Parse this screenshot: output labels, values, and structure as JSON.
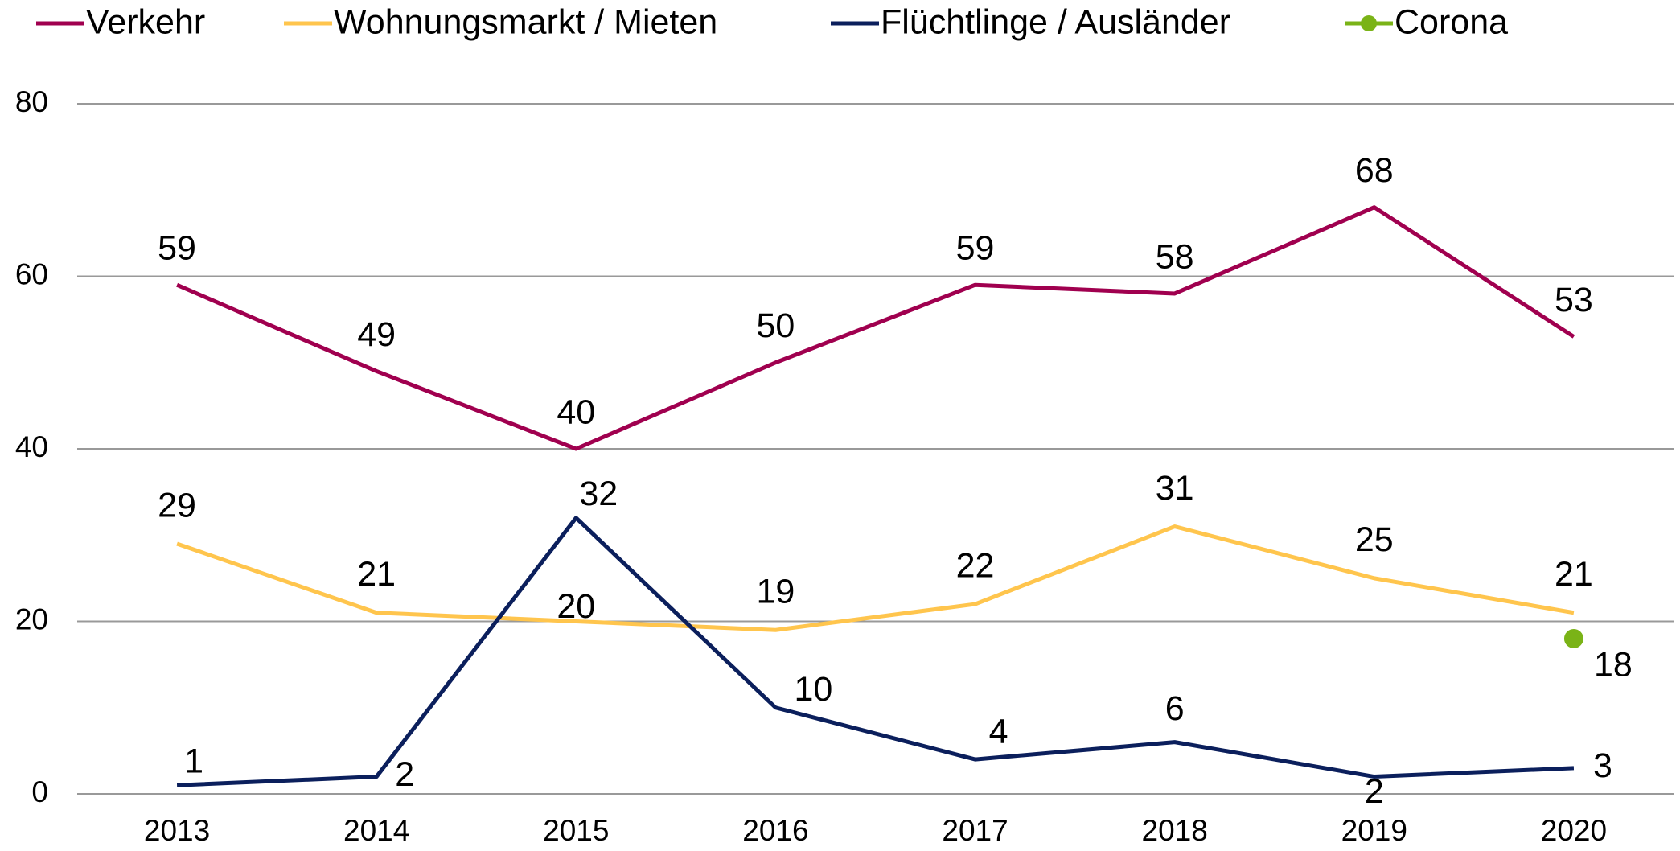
{
  "chart_data": {
    "type": "line",
    "categories": [
      "2013",
      "2014",
      "2015",
      "2016",
      "2017",
      "2018",
      "2019",
      "2020"
    ],
    "series": [
      {
        "name": "Verkehr",
        "color": "#a0004f",
        "values": [
          59,
          49,
          40,
          50,
          59,
          58,
          68,
          53
        ]
      },
      {
        "name": "Wohnungsmarkt / Mieten",
        "color": "#ffc54d",
        "values": [
          29,
          21,
          20,
          19,
          22,
          31,
          25,
          21
        ]
      },
      {
        "name": "Flüchtlinge / Ausländer",
        "color": "#0b1f5c",
        "values": [
          1,
          2,
          32,
          10,
          4,
          6,
          2,
          3
        ]
      },
      {
        "name": "Corona",
        "color": "#7ab317",
        "marker": true,
        "values": [
          null,
          null,
          null,
          null,
          null,
          null,
          null,
          18
        ]
      }
    ],
    "ylim": [
      0,
      80
    ],
    "yticks": [
      0,
      20,
      40,
      60,
      80
    ],
    "grid": true,
    "legend": "top"
  }
}
